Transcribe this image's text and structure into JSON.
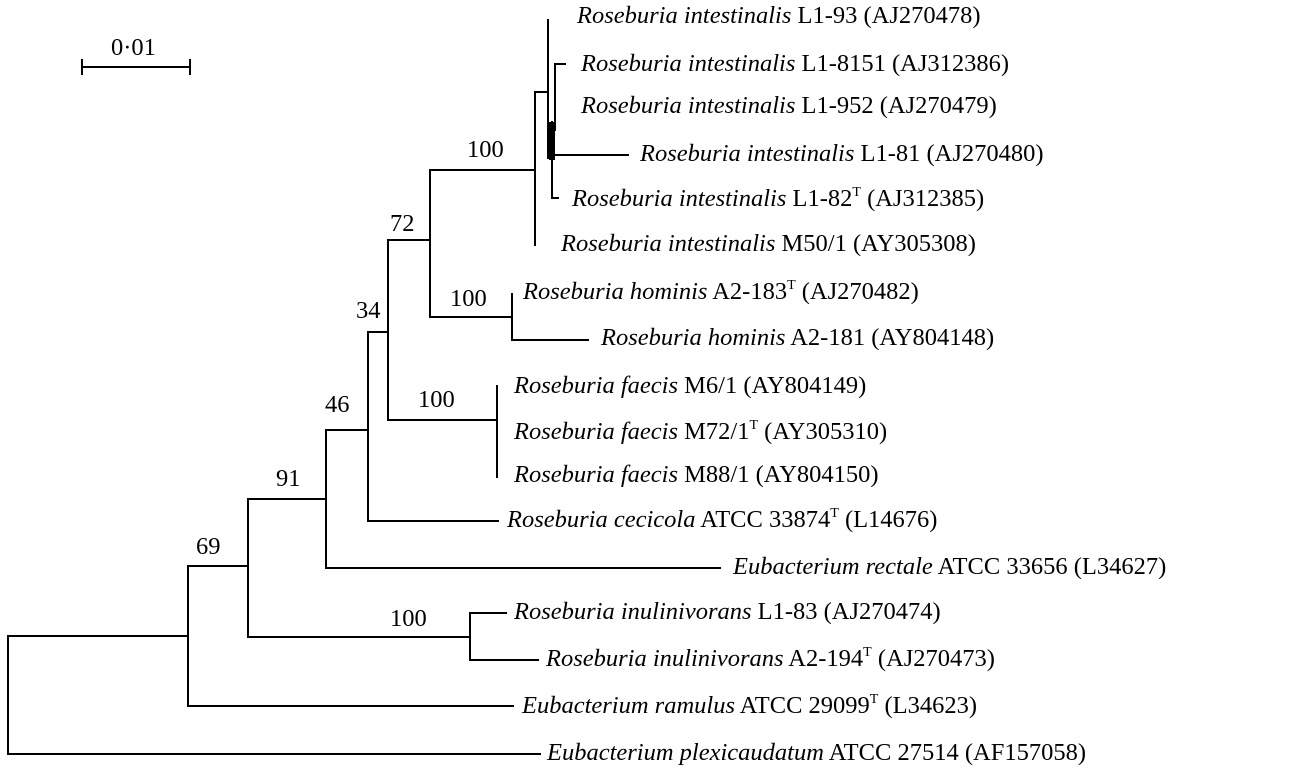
{
  "scale_bar": {
    "label": "0·01"
  },
  "leaves": [
    {
      "id": "ri-l193",
      "genus_species": "Roseburia intestinalis",
      "strain": "L1-93",
      "type_strain": false,
      "accession": "(AJ270478)"
    },
    {
      "id": "ri-l18151",
      "genus_species": "Roseburia intestinalis",
      "strain": "L1-8151",
      "type_strain": false,
      "accession": "(AJ312386)"
    },
    {
      "id": "ri-l1952",
      "genus_species": "Roseburia intestinalis",
      "strain": "L1-952",
      "type_strain": false,
      "accession": "(AJ270479)"
    },
    {
      "id": "ri-l181",
      "genus_species": "Roseburia intestinalis",
      "strain": "L1-81",
      "type_strain": false,
      "accession": "(AJ270480)"
    },
    {
      "id": "ri-l182",
      "genus_species": "Roseburia intestinalis",
      "strain": "L1-82",
      "type_strain": true,
      "accession": "(AJ312385)"
    },
    {
      "id": "ri-m501",
      "genus_species": "Roseburia intestinalis",
      "strain": "M50/1",
      "type_strain": false,
      "accession": "(AY305308)"
    },
    {
      "id": "rh-a2183",
      "genus_species": "Roseburia hominis",
      "strain": "A2-183",
      "type_strain": true,
      "accession": "(AJ270482)"
    },
    {
      "id": "rh-a2181",
      "genus_species": "Roseburia hominis",
      "strain": "A2-181",
      "type_strain": false,
      "accession": "(AY804148)"
    },
    {
      "id": "rf-m61",
      "genus_species": "Roseburia faecis",
      "strain": "M6/1",
      "type_strain": false,
      "accession": "(AY804149)"
    },
    {
      "id": "rf-m721",
      "genus_species": "Roseburia faecis",
      "strain": "M72/1",
      "type_strain": true,
      "accession": "(AY305310)"
    },
    {
      "id": "rf-m881",
      "genus_species": "Roseburia faecis",
      "strain": "M88/1",
      "type_strain": false,
      "accession": "(AY804150)"
    },
    {
      "id": "rc-atcc",
      "genus_species": "Roseburia cecicola",
      "strain": "ATCC 33874",
      "type_strain": true,
      "accession": "(L14676)"
    },
    {
      "id": "er-atcc",
      "genus_species": "Eubacterium rectale",
      "strain": "ATCC 33656",
      "type_strain": false,
      "accession": "(L34627)"
    },
    {
      "id": "rin-l183",
      "genus_species": "Roseburia inulinivorans",
      "strain": "L1-83",
      "type_strain": false,
      "accession": "(AJ270474)"
    },
    {
      "id": "rin-a2194",
      "genus_species": "Roseburia inulinivorans",
      "strain": "A2-194",
      "type_strain": true,
      "accession": "(AJ270473)"
    },
    {
      "id": "era-atcc",
      "genus_species": "Eubacterium ramulus",
      "strain": "ATCC 29099",
      "type_strain": true,
      "accession": "(L34623)"
    },
    {
      "id": "ep-atcc",
      "genus_species": "Eubacterium plexicaudatum",
      "strain": "ATCC 27514",
      "type_strain": false,
      "accession": "(AF157058)"
    }
  ],
  "type_strain_mark": "T",
  "bootstrap": [
    {
      "id": "b-intestinalis",
      "value": "100"
    },
    {
      "id": "b-72",
      "value": "72"
    },
    {
      "id": "b-hominis",
      "value": "100"
    },
    {
      "id": "b-34",
      "value": "34"
    },
    {
      "id": "b-faecis",
      "value": "100"
    },
    {
      "id": "b-46",
      "value": "46"
    },
    {
      "id": "b-91",
      "value": "91"
    },
    {
      "id": "b-inulinivorans",
      "value": "100"
    },
    {
      "id": "b-69",
      "value": "69"
    }
  ]
}
